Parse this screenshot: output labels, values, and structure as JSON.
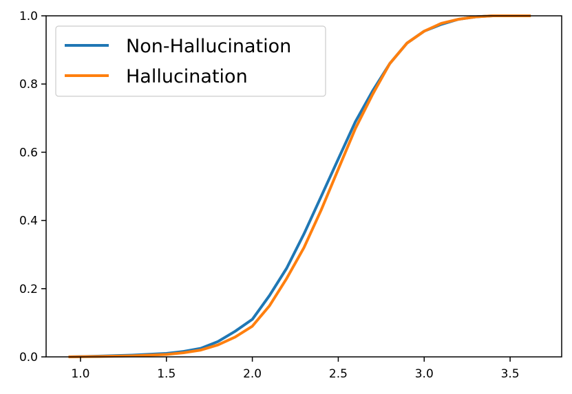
{
  "chart_data": {
    "type": "line",
    "title": "",
    "xlabel": "",
    "ylabel": "",
    "xlim": [
      0.8,
      3.8
    ],
    "ylim": [
      0.0,
      1.0
    ],
    "xticks": [
      1.0,
      1.5,
      2.0,
      2.5,
      3.0,
      3.5
    ],
    "xtick_labels": [
      "1.0",
      "1.5",
      "2.0",
      "2.5",
      "3.0",
      "3.5"
    ],
    "yticks": [
      0.0,
      0.2,
      0.4,
      0.6,
      0.8,
      1.0
    ],
    "ytick_labels": [
      "0.0",
      "0.2",
      "0.4",
      "0.6",
      "0.8",
      "1.0"
    ],
    "grid": false,
    "legend_position": "top-left",
    "series": [
      {
        "name": "Non-Hallucination",
        "color": "#1f77b4",
        "x": [
          0.93,
          1.1,
          1.3,
          1.5,
          1.6,
          1.7,
          1.8,
          1.9,
          2.0,
          2.1,
          2.2,
          2.3,
          2.4,
          2.5,
          2.6,
          2.7,
          2.8,
          2.9,
          3.0,
          3.1,
          3.2,
          3.3,
          3.4,
          3.5,
          3.62
        ],
        "y": [
          0.0,
          0.002,
          0.005,
          0.01,
          0.016,
          0.025,
          0.045,
          0.075,
          0.11,
          0.18,
          0.26,
          0.36,
          0.47,
          0.58,
          0.69,
          0.78,
          0.86,
          0.92,
          0.955,
          0.975,
          0.99,
          0.997,
          1.0,
          1.0,
          1.0
        ]
      },
      {
        "name": "Hallucination",
        "color": "#ff7f0e",
        "x": [
          0.93,
          1.1,
          1.3,
          1.5,
          1.6,
          1.7,
          1.8,
          1.9,
          2.0,
          2.1,
          2.2,
          2.3,
          2.4,
          2.5,
          2.6,
          2.7,
          2.8,
          2.9,
          3.0,
          3.1,
          3.2,
          3.3,
          3.4,
          3.5,
          3.62
        ],
        "y": [
          0.0,
          0.001,
          0.003,
          0.007,
          0.012,
          0.02,
          0.035,
          0.058,
          0.09,
          0.15,
          0.23,
          0.32,
          0.43,
          0.55,
          0.67,
          0.77,
          0.86,
          0.92,
          0.955,
          0.978,
          0.99,
          0.997,
          1.0,
          1.0,
          1.0
        ]
      }
    ]
  }
}
